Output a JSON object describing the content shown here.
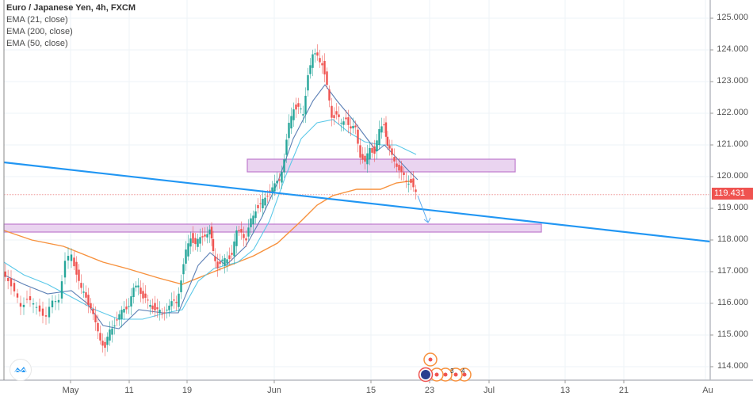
{
  "legend": {
    "title": "Euro / Japanese Yen, 4h, FXCM",
    "indicators": [
      "EMA (21, close)",
      "EMA (200, close)",
      "EMA (50, close)"
    ]
  },
  "price_axis": {
    "ticks": [
      "125.000",
      "124.000",
      "123.000",
      "122.000",
      "121.000",
      "120.000",
      "119.000",
      "118.000",
      "117.000",
      "116.000",
      "115.000",
      "114.000"
    ],
    "last_price": "119.431"
  },
  "time_axis": {
    "ticks": [
      "May",
      "11",
      "19",
      "Jun",
      "15",
      "23",
      "Jul",
      "13",
      "21",
      "Au"
    ]
  },
  "colors": {
    "up": "#26a69a",
    "down": "#ef5350",
    "ema21": "#5b7fb5",
    "ema50": "#5bc8e8",
    "ema200": "#f7913d",
    "trendline": "#2196f3",
    "zone_fill": "#e8d0ef",
    "zone_stroke": "#b76cc8",
    "last_price": "#ef5350"
  },
  "chart_data": {
    "type": "candlestick",
    "title": "Euro / Japanese Yen, 4h, FXCM",
    "xlabel": "",
    "ylabel": "",
    "ylim": [
      113.4,
      125.5
    ],
    "x_ticks": [
      "May",
      "11",
      "19",
      "Jun",
      "15",
      "23",
      "Jul",
      "13",
      "21",
      "Au"
    ],
    "y_ticks": [
      114,
      115,
      116,
      117,
      118,
      119,
      120,
      121,
      122,
      123,
      124,
      125
    ],
    "last_price": 119.431,
    "price_path_approx": [
      {
        "date": "late Apr",
        "price": 117.0
      },
      {
        "date": "May",
        "price": 115.6
      },
      {
        "date": "May 3",
        "price": 117.7
      },
      {
        "date": "May 7",
        "price": 115.8
      },
      {
        "date": "May 10",
        "price": 114.5
      },
      {
        "date": "May 14",
        "price": 116.0
      },
      {
        "date": "May 16",
        "price": 116.8
      },
      {
        "date": "May 19",
        "price": 115.8
      },
      {
        "date": "May 21",
        "price": 118.1
      },
      {
        "date": "May 24",
        "price": 118.4
      },
      {
        "date": "May 26",
        "price": 117.1
      },
      {
        "date": "May 29",
        "price": 118.9
      },
      {
        "date": "Jun",
        "price": 119.6
      },
      {
        "date": "Jun 3",
        "price": 122.5
      },
      {
        "date": "Jun 5",
        "price": 124.0
      },
      {
        "date": "Jun 7",
        "price": 123.6
      },
      {
        "date": "Jun 9",
        "price": 121.5
      },
      {
        "date": "Jun 12",
        "price": 120.3
      },
      {
        "date": "Jun 15",
        "price": 121.8
      },
      {
        "date": "Jun 18",
        "price": 120.1
      },
      {
        "date": "Jun 20",
        "price": 119.431
      }
    ],
    "series": [
      {
        "name": "EMA (21, close)",
        "color": "#5b7fb5"
      },
      {
        "name": "EMA (50, close)",
        "color": "#5bc8e8"
      },
      {
        "name": "EMA (200, close)",
        "color": "#f7913d"
      }
    ],
    "annotations": [
      {
        "type": "trendline",
        "from_price": 120.45,
        "to_price": 117.9,
        "color": "#2196f3"
      },
      {
        "type": "rectangle",
        "label": "resistance zone",
        "price_top": 120.55,
        "price_bottom": 120.15
      },
      {
        "type": "rectangle",
        "label": "support zone",
        "price_top": 118.5,
        "price_bottom": 118.25
      },
      {
        "type": "arrow",
        "from_price": 119.4,
        "to_price": 118.5,
        "direction": "down"
      }
    ],
    "grid": true
  }
}
